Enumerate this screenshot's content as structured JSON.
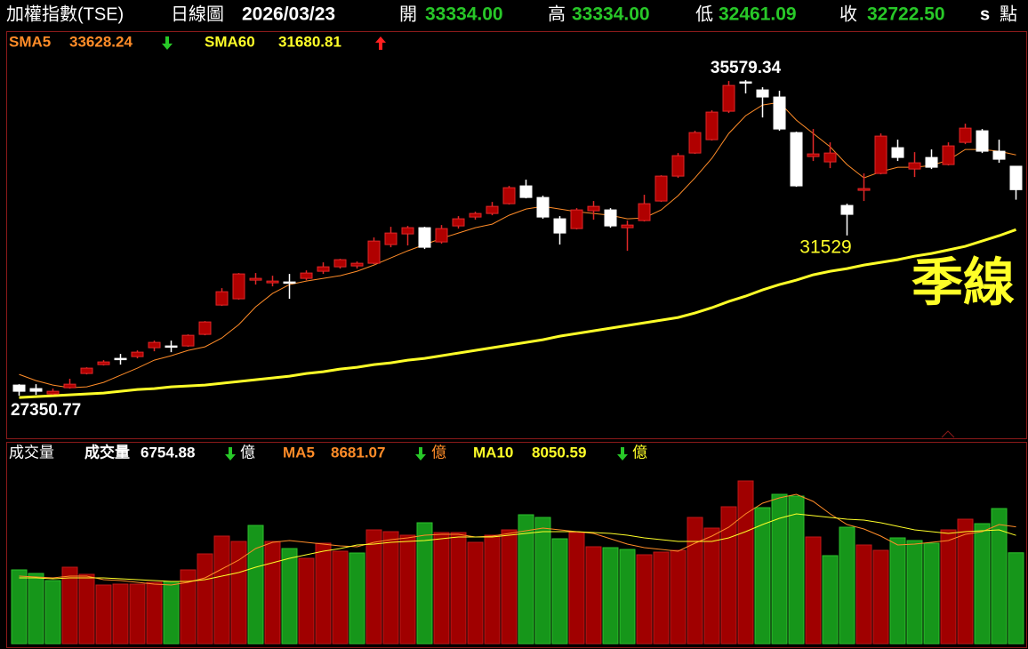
{
  "header": {
    "title": "加權指數(TSE)",
    "period": "日線圖",
    "date": "2026/03/23",
    "open_label": "開",
    "open": "33334.00",
    "high_label": "高",
    "high": "33334.00",
    "low_label": "低",
    "low": "32461.09",
    "close_label": "收",
    "close": "32722.50",
    "flag": "s",
    "unit": "點"
  },
  "chart_data": [
    {
      "type": "candlestick",
      "up_color": "#b00000",
      "down_color": "#ffffff",
      "ylim": [
        26240,
        36810
      ],
      "annotation": "季線",
      "open": [
        27628,
        27536,
        27396,
        27559,
        27930,
        28161,
        28324,
        28370,
        28602,
        28648,
        28648,
        28950,
        29714,
        29877,
        30363,
        30294,
        30317,
        30410,
        30595,
        30711,
        30734,
        30804,
        31291,
        31569,
        31731,
        31360,
        31777,
        32009,
        32102,
        32357,
        32821,
        32519,
        31963,
        31708,
        32172,
        32195,
        31731,
        31916,
        32427,
        33076,
        33678,
        34026,
        34768,
        35533,
        35324,
        35139,
        34211,
        33586,
        33447,
        32311,
        32705,
        33145,
        33817,
        33261,
        33562,
        33377,
        33956,
        34258,
        33725,
        33334
      ],
      "high": [
        27651,
        27651,
        27536,
        27791,
        28092,
        28277,
        28440,
        28532,
        28787,
        28787,
        28949,
        29297,
        30155,
        30549,
        30549,
        30479,
        30526,
        30618,
        30827,
        30920,
        30850,
        31476,
        31754,
        31777,
        31754,
        31800,
        32033,
        32148,
        32403,
        32821,
        32983,
        32566,
        32033,
        32241,
        32427,
        32241,
        31916,
        32589,
        33099,
        33678,
        34258,
        34791,
        35556,
        35579.34,
        35394,
        35301,
        34235,
        34304,
        33956,
        32357,
        33145,
        34188,
        34026,
        33701,
        33771,
        33956,
        34443,
        34304,
        34026,
        33334
      ],
      "low": [
        27350.77,
        27373,
        27373,
        27536,
        27906,
        28138,
        28161,
        28324,
        28509,
        28486,
        28625,
        28926,
        29691,
        29854,
        30248,
        30201,
        29877,
        30363,
        30526,
        30665,
        30665,
        30781,
        31221,
        31268,
        31175,
        31314,
        31708,
        31940,
        32056,
        32334,
        32496,
        31963,
        31291,
        31685,
        31940,
        31731,
        31128,
        31893,
        32403,
        33029,
        33655,
        34003,
        34721,
        35231,
        34605,
        34258,
        32797,
        33470,
        33284,
        31529,
        32427,
        33122,
        33470,
        33052,
        33261,
        33354,
        33910,
        33678,
        33423,
        32461.09
      ],
      "close": [
        27466,
        27466,
        27466,
        27651,
        28069,
        28231,
        28301,
        28486,
        28741,
        28625,
        28926,
        29274,
        30062,
        30526,
        30410,
        30340,
        30294,
        30549,
        30711,
        30897,
        30804,
        31383,
        31592,
        31731,
        31221,
        31708,
        31963,
        32102,
        32287,
        32774,
        32519,
        32009,
        31592,
        32195,
        32287,
        31777,
        31800,
        32357,
        33076,
        33609,
        34211,
        34745,
        35440,
        35509,
        35139,
        34304,
        32821,
        33655,
        33678,
        32079,
        32751,
        34119,
        33562,
        33423,
        33307,
        33864,
        34327,
        33725,
        33516,
        32722.5
      ],
      "series": [
        {
          "name": "SMA5",
          "color": "#ff8c28",
          "values": [
            27906,
            27744,
            27628,
            27559,
            27582,
            27698,
            27883,
            28069,
            28277,
            28393,
            28532,
            28625,
            28857,
            29204,
            29668,
            30016,
            30248,
            30340,
            30410,
            30479,
            30595,
            30758,
            30943,
            31128,
            31291,
            31453,
            31592,
            31731,
            31824,
            32056,
            32218,
            32287,
            32218,
            32148,
            32102,
            32056,
            31963,
            31986,
            32195,
            32566,
            33029,
            33539,
            34188,
            34652,
            34930,
            34999,
            34536,
            34188,
            33840,
            33377,
            33029,
            33191,
            33307,
            33307,
            33354,
            33493,
            33771,
            33771,
            33725,
            33628.24
          ]
        },
        {
          "name": "SMA60",
          "color": "#ffff28",
          "values": [
            27304,
            27327,
            27350,
            27373,
            27396,
            27420,
            27466,
            27512,
            27536,
            27582,
            27605,
            27628,
            27675,
            27721,
            27767,
            27814,
            27860,
            27930,
            27976,
            28045,
            28092,
            28161,
            28208,
            28277,
            28324,
            28393,
            28463,
            28532,
            28602,
            28671,
            28741,
            28810,
            28903,
            28973,
            29042,
            29112,
            29181,
            29251,
            29320,
            29390,
            29506,
            29645,
            29807,
            29946,
            30109,
            30248,
            30363,
            30503,
            30595,
            30665,
            30758,
            30827,
            30897,
            30989,
            31059,
            31152,
            31244,
            31383,
            31522,
            31680.81
          ]
        }
      ]
    },
    {
      "type": "bar",
      "title": "成交量",
      "unit": "億",
      "ylim": [
        0,
        15000
      ],
      "series": [
        {
          "name": "成交量",
          "values": [
            5485,
            5220,
            4692,
            5683,
            5154,
            4361,
            4427,
            4427,
            4560,
            4626,
            5485,
            6674,
            7996,
            7599,
            8789,
            7599,
            7071,
            6344,
            7467,
            6872,
            6740,
            8458,
            8326,
            8062,
            8987,
            8260,
            8260,
            7533,
            8062,
            8458,
            9582,
            9383,
            7797,
            8260,
            7203,
            7137,
            7004,
            6608,
            6806,
            6938,
            9383,
            8590,
            10176,
            12093,
            10110,
            11101,
            10969,
            7930,
            6542,
            8656,
            7335,
            6938,
            7864,
            7665,
            7467,
            8458,
            9251,
            8921,
            10044,
            6754.88
          ],
          "colors": [
            "#16961a",
            "#16961a",
            "#16961a",
            "#a00000",
            "#a00000",
            "#a00000",
            "#a00000",
            "#a00000",
            "#a00000",
            "#16961a",
            "#a00000",
            "#a00000",
            "#a00000",
            "#a00000",
            "#16961a",
            "#a00000",
            "#16961a",
            "#a00000",
            "#a00000",
            "#a00000",
            "#16961a",
            "#a00000",
            "#a00000",
            "#a00000",
            "#16961a",
            "#a00000",
            "#a00000",
            "#a00000",
            "#a00000",
            "#a00000",
            "#16961a",
            "#16961a",
            "#16961a",
            "#a00000",
            "#a00000",
            "#16961a",
            "#16961a",
            "#a00000",
            "#a00000",
            "#a00000",
            "#a00000",
            "#a00000",
            "#a00000",
            "#a00000",
            "#16961a",
            "#16961a",
            "#16961a",
            "#a00000",
            "#16961a",
            "#16961a",
            "#a00000",
            "#a00000",
            "#16961a",
            "#16961a",
            "#16961a",
            "#a00000",
            "#a00000",
            "#16961a",
            "#16961a",
            "#16961a"
          ]
        },
        {
          "name": "MA5",
          "type": "line",
          "color": "#ff8c28",
          "values": [
            5022,
            4956,
            4890,
            5022,
            5022,
            4758,
            4692,
            4560,
            4427,
            4361,
            4560,
            4890,
            5551,
            6212,
            7071,
            7533,
            7665,
            7533,
            7401,
            7269,
            7203,
            7533,
            7731,
            7864,
            8062,
            8128,
            8128,
            7930,
            7996,
            8194,
            8392,
            8590,
            8458,
            8326,
            8194,
            7797,
            7401,
            7137,
            7004,
            6872,
            7467,
            7996,
            8656,
            9648,
            10441,
            10837,
            11101,
            10573,
            9648,
            8855,
            8524,
            7996,
            7335,
            7401,
            7533,
            7665,
            8128,
            8326,
            8855,
            8681.07
          ]
        },
        {
          "name": "MA10",
          "type": "line",
          "color": "#ffff28",
          "values": [
            4890,
            4890,
            4824,
            4890,
            4890,
            4890,
            4824,
            4758,
            4692,
            4626,
            4626,
            4758,
            5022,
            5286,
            5683,
            6013,
            6344,
            6608,
            6872,
            7071,
            7335,
            7401,
            7533,
            7599,
            7665,
            7797,
            7930,
            7930,
            7930,
            8062,
            8194,
            8326,
            8326,
            8326,
            8260,
            8194,
            8062,
            7864,
            7731,
            7599,
            7599,
            7599,
            7864,
            8326,
            8855,
            9317,
            9648,
            9516,
            9383,
            9251,
            9185,
            8987,
            8723,
            8458,
            8326,
            8194,
            8326,
            8392,
            8458,
            8050.59
          ]
        }
      ]
    }
  ]
}
